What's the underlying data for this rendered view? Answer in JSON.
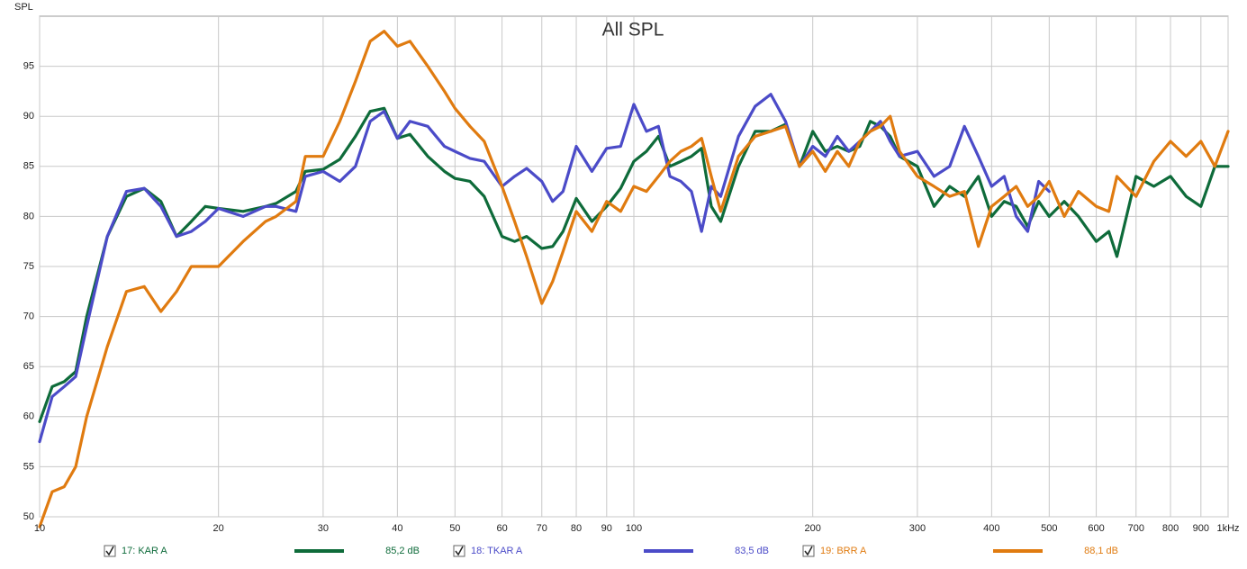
{
  "chart_data": {
    "type": "line",
    "title": "All SPL",
    "y_label": "SPL",
    "log_x": true,
    "grid": true,
    "xlim": [
      10,
      1000
    ],
    "ylim": [
      50,
      100
    ],
    "xticks": [
      10,
      20,
      30,
      40,
      50,
      60,
      70,
      80,
      90,
      100,
      200,
      300,
      400,
      500,
      600,
      700,
      800,
      900,
      {
        "value": 1000,
        "label": "1kHz"
      }
    ],
    "yticks": [
      50,
      55,
      60,
      65,
      70,
      75,
      80,
      85,
      90,
      95
    ],
    "x": [
      10,
      10.5,
      11,
      11.5,
      12,
      13,
      14,
      15,
      16,
      17,
      18,
      19,
      20,
      22,
      24,
      25,
      27,
      28,
      30,
      32,
      34,
      36,
      38,
      40,
      42,
      45,
      48,
      50,
      53,
      56,
      60,
      63,
      66,
      70,
      73,
      76,
      80,
      85,
      90,
      95,
      100,
      105,
      110,
      115,
      120,
      125,
      130,
      135,
      140,
      150,
      160,
      170,
      180,
      190,
      200,
      210,
      220,
      230,
      240,
      250,
      260,
      270,
      280,
      300,
      320,
      340,
      360,
      380,
      400,
      420,
      440,
      460,
      480,
      500,
      530,
      560,
      600,
      630,
      650,
      700,
      750,
      800,
      850,
      900,
      950,
      1000
    ],
    "series": [
      {
        "name": "17: KAR A",
        "legend_value": "85,2 dB",
        "color": "#0e6b3a",
        "values": [
          59.5,
          63,
          63.5,
          64.5,
          70,
          78,
          82,
          82.8,
          81.5,
          78,
          79.5,
          81,
          80.8,
          80.5,
          81,
          81.3,
          82.5,
          84.5,
          84.7,
          85.7,
          88,
          90.5,
          90.8,
          87.8,
          88.2,
          86,
          84.5,
          83.8,
          83.5,
          82,
          78,
          77.5,
          78,
          76.8,
          77,
          78.5,
          81.8,
          79.5,
          81,
          82.8,
          85.5,
          86.5,
          88,
          85,
          85.5,
          86,
          86.8,
          81,
          79.5,
          85,
          88.5,
          88.5,
          89.2,
          85,
          88.5,
          86.5,
          87,
          86.5,
          87,
          89.5,
          89,
          88,
          86,
          85,
          81,
          83,
          82,
          84,
          80,
          81.5,
          81,
          79,
          81.5,
          80,
          81.5,
          80,
          77.5,
          78.5,
          76,
          84,
          83,
          84,
          82,
          81,
          85,
          85
        ]
      },
      {
        "name": "18: TKAR A",
        "legend_value": "83,5 dB",
        "color": "#4b4bc8",
        "values": [
          57.5,
          62,
          63,
          64,
          69,
          78,
          82.5,
          82.8,
          81,
          78,
          78.5,
          79.5,
          80.8,
          80,
          81,
          81,
          80.5,
          84,
          84.5,
          83.5,
          85,
          89.5,
          90.5,
          87.8,
          89.5,
          89,
          87,
          86.5,
          85.8,
          85.5,
          83,
          84,
          84.8,
          83.5,
          81.5,
          82.5,
          87,
          84.5,
          86.8,
          87,
          91.2,
          88.5,
          89,
          84,
          83.5,
          82.5,
          78.5,
          83,
          82,
          88,
          91,
          92.2,
          89.5,
          85,
          87,
          86,
          88,
          86.5,
          87.5,
          88.5,
          89.5,
          87.5,
          86,
          86.5,
          84,
          85,
          89,
          86,
          83,
          84,
          80,
          78.5,
          83.5,
          82.5,
          null,
          null,
          null,
          null,
          null,
          null,
          null,
          null,
          null,
          null,
          null,
          null
        ]
      },
      {
        "name": "19: BRR A",
        "legend_value": "88,1 dB",
        "color": "#e07b10",
        "values": [
          49,
          52.5,
          53,
          55,
          60,
          67,
          72.5,
          73,
          70.5,
          72.5,
          75,
          75,
          75,
          77.5,
          79.5,
          80,
          81.5,
          86,
          86,
          89.5,
          93.5,
          97.5,
          98.5,
          97,
          97.5,
          95,
          92.5,
          90.8,
          89,
          87.5,
          83,
          79.5,
          76,
          71.3,
          73.5,
          76.5,
          80.5,
          78.5,
          81.5,
          80.5,
          83,
          82.5,
          84,
          85.5,
          86.5,
          87,
          87.8,
          84,
          80.5,
          86,
          88,
          88.5,
          89,
          85,
          86.5,
          84.5,
          86.5,
          85,
          87.5,
          88.5,
          89,
          90,
          86.5,
          84,
          83,
          82,
          82.5,
          77,
          81,
          82,
          83,
          81,
          82,
          83.5,
          80,
          82.5,
          81,
          80.5,
          84,
          82,
          85.5,
          87.5,
          86,
          87.5,
          85,
          88.5
        ]
      }
    ]
  }
}
